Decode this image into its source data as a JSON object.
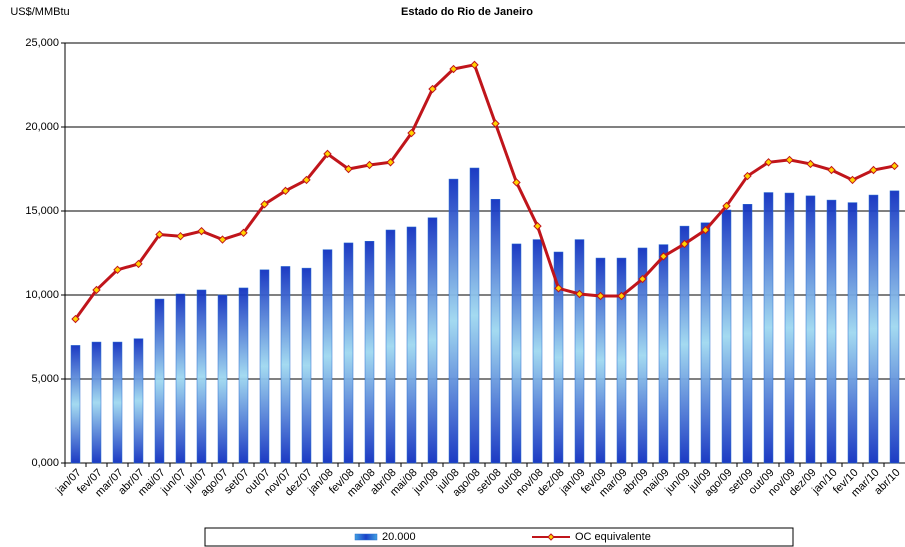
{
  "chart_data": {
    "type": "bar",
    "title": "Estado do Rio de Janeiro",
    "y_label": "US$/MMBtu",
    "categories": [
      "jan/07",
      "fev/07",
      "mar/07",
      "abr/07",
      "mai/07",
      "jun/07",
      "jul/07",
      "ago/07",
      "set/07",
      "out/07",
      "nov/07",
      "dez/07",
      "jan/08",
      "fev/08",
      "mar/08",
      "abr/08",
      "mai/08",
      "jun/08",
      "jul/08",
      "ago/08",
      "set/08",
      "out/08",
      "nov/08",
      "dez/08",
      "jan/09",
      "fev/09",
      "mar/09",
      "abr/09",
      "mai/09",
      "jun/09",
      "jul/09",
      "ago/09",
      "set/09",
      "out/09",
      "nov/09",
      "dez/09",
      "jan/10",
      "fev/10",
      "mar/10",
      "abr/10"
    ],
    "series": [
      {
        "name": "20.000",
        "type": "bar",
        "color": "#2a6fd0",
        "values": [
          7.0,
          7.2,
          7.2,
          7.4,
          9.76,
          10.06,
          10.3,
          10.0,
          10.42,
          11.5,
          11.7,
          11.6,
          12.7,
          13.1,
          13.2,
          13.87,
          14.05,
          14.6,
          16.9,
          17.56,
          15.7,
          13.04,
          13.3,
          12.56,
          13.3,
          12.2,
          12.2,
          12.8,
          13.0,
          14.1,
          14.3,
          15.06,
          15.4,
          16.1,
          16.07,
          15.9,
          15.65,
          15.5,
          15.95,
          16.2
        ]
      },
      {
        "name": "OC equivalente",
        "type": "line",
        "color": "#c0151b",
        "marker_color": "#ffd400",
        "values": [
          8.57,
          10.3,
          11.5,
          11.85,
          13.6,
          13.5,
          13.8,
          13.3,
          13.7,
          15.4,
          16.2,
          16.85,
          18.4,
          17.5,
          17.74,
          17.9,
          19.64,
          22.26,
          23.45,
          23.7,
          20.2,
          16.7,
          14.1,
          10.4,
          10.06,
          9.94,
          9.94,
          10.95,
          12.3,
          13.04,
          13.87,
          15.3,
          17.08,
          17.9,
          18.04,
          17.8,
          17.44,
          16.85,
          17.44,
          17.68
        ]
      }
    ],
    "ylim": [
      0,
      25
    ],
    "yticks": [
      {
        "value": 0,
        "label": "0,000"
      },
      {
        "value": 5,
        "label": "5,000"
      },
      {
        "value": 10,
        "label": "10,000"
      },
      {
        "value": 15,
        "label": "15,000"
      },
      {
        "value": 20,
        "label": "20,000"
      },
      {
        "value": 25,
        "label": "25,000"
      }
    ],
    "grid": true,
    "legend": "bottom"
  }
}
